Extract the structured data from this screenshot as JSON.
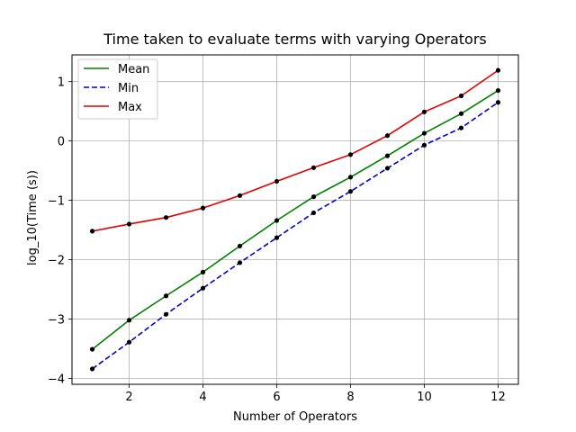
{
  "chart_data": {
    "type": "line",
    "title": "Time taken to evaluate terms with varying Operators",
    "xlabel": "Number of Operators",
    "ylabel": "log_10(Time (s))",
    "xlim": [
      0.45,
      12.55
    ],
    "ylim": [
      -4.1,
      1.45
    ],
    "xticks": [
      2,
      4,
      6,
      8,
      10,
      12
    ],
    "yticks": [
      -4,
      -3,
      -2,
      -1,
      0,
      1
    ],
    "grid": true,
    "legend_position": "top-left",
    "x": [
      1,
      2,
      3,
      4,
      5,
      6,
      7,
      8,
      9,
      10,
      11,
      12
    ],
    "series": [
      {
        "name": "Mean",
        "color": "#008000",
        "dash": "solid",
        "values": [
          -3.51,
          -3.02,
          -2.61,
          -2.21,
          -1.77,
          -1.34,
          -0.94,
          -0.61,
          -0.25,
          0.13,
          0.46,
          0.85
        ]
      },
      {
        "name": "Min",
        "color": "#0000cc",
        "dash": "dashed",
        "values": [
          -3.84,
          -3.39,
          -2.92,
          -2.48,
          -2.05,
          -1.63,
          -1.21,
          -0.85,
          -0.46,
          -0.07,
          0.22,
          0.65
        ]
      },
      {
        "name": "Max",
        "color": "#e00000",
        "dash": "solid",
        "values": [
          -1.52,
          -1.4,
          -1.29,
          -1.13,
          -0.92,
          -0.68,
          -0.45,
          -0.23,
          0.09,
          0.49,
          0.76,
          1.19
        ]
      }
    ],
    "marker_color": "#000000"
  }
}
